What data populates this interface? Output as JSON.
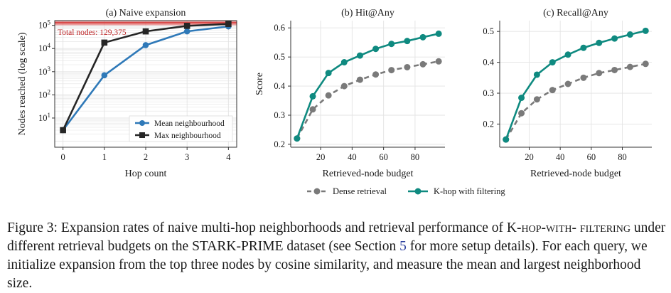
{
  "colors": {
    "blue": "#2f79b8",
    "black": "#262626",
    "red_band": "#d94a4a",
    "teal": "#0f8a80",
    "gray": "#7a7a7a",
    "total_text": "#c0282a"
  },
  "chart_data": [
    {
      "type": "line",
      "title": "(a) Naive expansion",
      "xlabel": "Hop count",
      "ylabel": "Nodes reached (log scale)",
      "yscale": "log",
      "grid": true,
      "legend_position": "lower-right",
      "x": [
        0,
        1,
        2,
        3,
        4
      ],
      "xticks": [
        "0",
        "1",
        "2",
        "3",
        "4"
      ],
      "ytick_exponents": [
        "1",
        "2",
        "3",
        "4",
        "5"
      ],
      "ytick_base": "10",
      "ylim": [
        0.55,
        160000
      ],
      "xlim": [
        -0.2,
        4.2
      ],
      "reference_line": {
        "value": 129375,
        "label": "Total nodes: 129,375"
      },
      "series": [
        {
          "name": "Mean neighbourhood",
          "values": [
            3,
            700,
            14000,
            55000,
            90000
          ],
          "marker": "circle"
        },
        {
          "name": "Max neighbourhood",
          "values": [
            3,
            18000,
            55000,
            95000,
            115000
          ],
          "marker": "square"
        }
      ]
    },
    {
      "type": "line",
      "title": "(b) Hit@Any",
      "xlabel": "Retrieved-node budget",
      "ylabel": "Score",
      "grid": true,
      "x": [
        5,
        15,
        25,
        35,
        45,
        55,
        65,
        75,
        85,
        95
      ],
      "xticks": [
        "20",
        "40",
        "60",
        "80"
      ],
      "yticks": [
        "0.2",
        "0.3",
        "0.4",
        "0.5",
        "0.6"
      ],
      "xlim": [
        1,
        99
      ],
      "ylim": [
        0.19,
        0.625
      ],
      "series": [
        {
          "name": "Dense retrieval",
          "values": [
            0.22,
            0.32,
            0.368,
            0.4,
            0.422,
            0.44,
            0.455,
            0.465,
            0.475,
            0.485
          ]
        },
        {
          "name": "K-hop with filtering",
          "values": [
            0.22,
            0.365,
            0.445,
            0.482,
            0.505,
            0.528,
            0.545,
            0.555,
            0.568,
            0.58
          ]
        }
      ]
    },
    {
      "type": "line",
      "title": "(c) Recall@Any",
      "xlabel": "Retrieved-node budget",
      "ylabel": "",
      "grid": true,
      "x": [
        5,
        15,
        25,
        35,
        45,
        55,
        65,
        75,
        85,
        95
      ],
      "xticks": [
        "20",
        "40",
        "60",
        "80"
      ],
      "yticks": [
        "0.2",
        "0.3",
        "0.4",
        "0.5"
      ],
      "xlim": [
        1,
        99
      ],
      "ylim": [
        0.125,
        0.535
      ],
      "series": [
        {
          "name": "Dense retrieval",
          "values": [
            0.15,
            0.235,
            0.28,
            0.31,
            0.33,
            0.35,
            0.365,
            0.375,
            0.385,
            0.395
          ]
        },
        {
          "name": "K-hop with filtering",
          "values": [
            0.15,
            0.285,
            0.36,
            0.4,
            0.425,
            0.447,
            0.463,
            0.477,
            0.49,
            0.502
          ]
        }
      ]
    }
  ],
  "shared_legend": [
    "Dense retrieval",
    "K-hop with filtering"
  ],
  "caption": {
    "label": "Figure 3:",
    "text_1": " Expansion rates of naive multi-hop neighborhoods and retrieval performance of K-",
    "smallcaps_1": "hop-with-",
    "smallcaps_2": "filtering",
    "text_2": " under different retrieval budgets on the STARK-PRIME dataset (see Section ",
    "section_ref": "5",
    "text_3": " for more setup details). For each query, we initialize expansion from the top three nodes by cosine similarity, and measure the mean and largest neighborhood size."
  }
}
